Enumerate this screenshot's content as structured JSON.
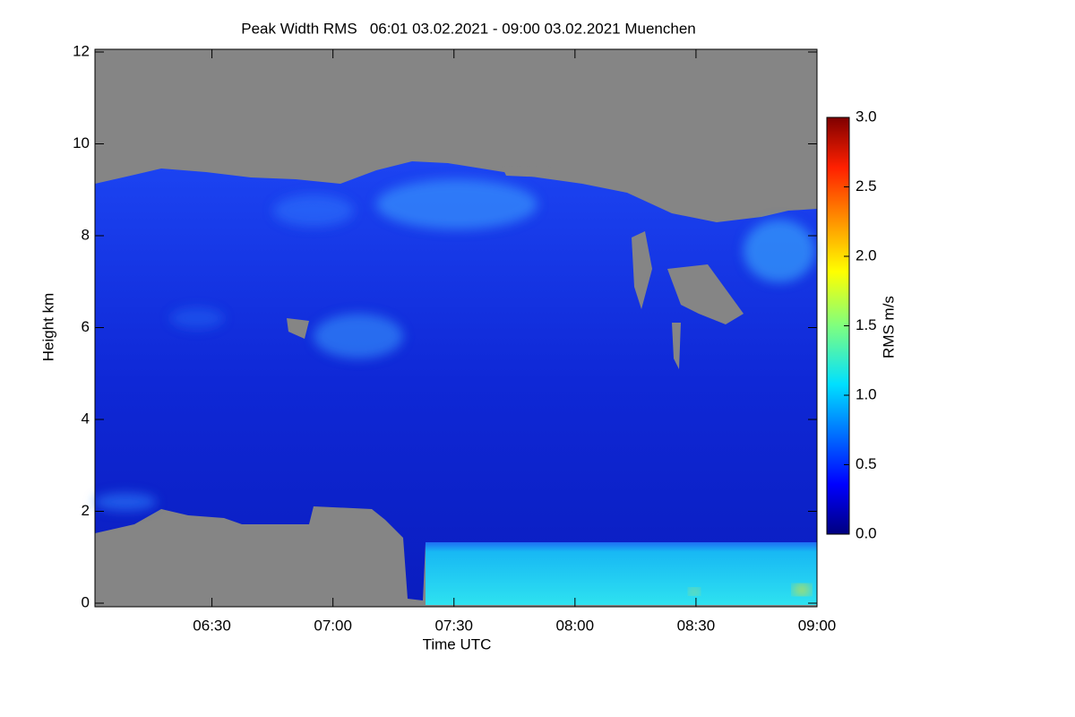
{
  "chart_data": {
    "type": "heatmap",
    "title": "Peak Width RMS   06:01 03.02.2021 - 09:00 03.02.2021 Muenchen",
    "x_label": "Time UTC",
    "y_label": "Height km",
    "xlim": [
      361,
      540
    ],
    "xticks": [
      {
        "value": 390,
        "label": "06:30"
      },
      {
        "value": 420,
        "label": "07:00"
      },
      {
        "value": 450,
        "label": "07:30"
      },
      {
        "value": 480,
        "label": "08:00"
      },
      {
        "value": 510,
        "label": "08:30"
      },
      {
        "value": 540,
        "label": "09:00"
      }
    ],
    "ylim": [
      0,
      12
    ],
    "yticks": [
      0,
      2,
      4,
      6,
      8,
      10,
      12
    ],
    "colorbar_label": "RMS m/s",
    "clim": [
      0,
      3
    ],
    "cticks": [
      {
        "value": 0,
        "label": "0.0"
      },
      {
        "value": 0.5,
        "label": "0.5"
      },
      {
        "value": 1,
        "label": "1.0"
      },
      {
        "value": 1.5,
        "label": "1.5"
      },
      {
        "value": 2,
        "label": "2.0"
      },
      {
        "value": 2.5,
        "label": "2.5"
      },
      {
        "value": 3,
        "label": "3.0"
      }
    ]
  }
}
